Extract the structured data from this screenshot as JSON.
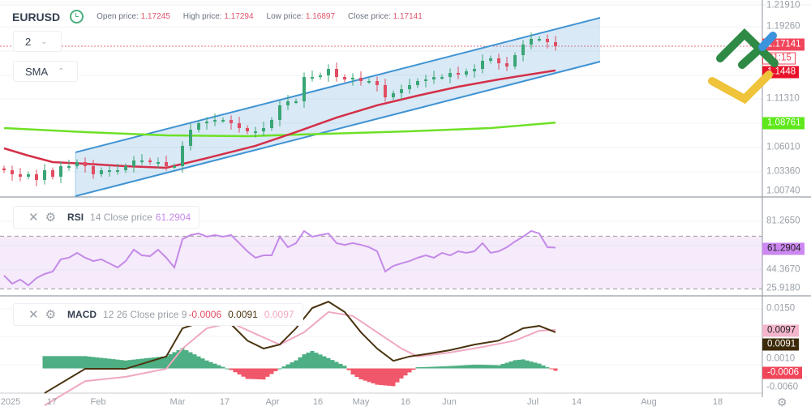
{
  "header": {
    "symbol": "EURUSD",
    "open_label": "Open price:",
    "open": "1.17245",
    "high_label": "High price:",
    "high": "1.17294",
    "low_label": "Low price:",
    "low": "1.16897",
    "close_label": "Close price:",
    "close": "1.17141"
  },
  "controls": {
    "timeframe": "2",
    "indicator_menu": "SMA"
  },
  "rsi_legend": {
    "name": "RSI",
    "params": "14 Close price",
    "value": "61.2904"
  },
  "macd_legend": {
    "name": "MACD",
    "params": "12 26 Close price 9",
    "hist": "-0.0006",
    "macd": "0.0091",
    "signal": "0.0097"
  },
  "price_axis": [
    "1.21910",
    "1.19260",
    "1.11310",
    "1.06010",
    "1.03360",
    "1.00740"
  ],
  "price_badges": {
    "last": "1.17141",
    "countdown": "31:15",
    "sma_red": "1.1448",
    "sma_green": "1.08761"
  },
  "rsi_axis": [
    "81.2650",
    "44.3670",
    "25.9180"
  ],
  "rsi_badge": "61.2904",
  "macd_axis": [
    "0.0150",
    "0.0010",
    "-0.0060"
  ],
  "macd_badges": {
    "signal": "0.0097",
    "macd": "0.0091",
    "hist": "-0.0006"
  },
  "x_ticks": [
    "2025",
    "17",
    "Feb",
    "Mar",
    "17",
    "Apr",
    "16",
    "May",
    "16",
    "Jun",
    "Jul",
    "14",
    "Aug",
    "18"
  ],
  "colors": {
    "up": "#3aa676",
    "down": "#e04c62",
    "sma_fast": "#d43049",
    "sma_slow": "#6ee026",
    "channel": "#3f93d3",
    "rsi": "#c48ae8",
    "macd": "#4a3410",
    "signal": "#f0a8c0"
  },
  "chart_data": [
    {
      "type": "candlestick",
      "title": "EURUSD",
      "ylim": [
        1.0074,
        1.2191
      ],
      "close": [
        1.0354,
        1.031,
        1.0283,
        1.031,
        1.0248,
        1.0354,
        1.0283,
        1.0399,
        1.0399,
        1.0443,
        1.0399,
        1.031,
        1.0354,
        1.0354,
        1.0354,
        1.0399,
        1.0461,
        1.0461,
        1.0443,
        1.0443,
        1.0399,
        1.0399,
        1.0621,
        1.0798,
        1.0869,
        1.0887,
        1.0905,
        1.0905,
        1.0869,
        1.0816,
        1.078,
        1.078,
        1.0816,
        1.0905,
        1.1065,
        1.1109,
        1.1109,
        1.1375,
        1.1375,
        1.1393,
        1.1464,
        1.1375,
        1.1349,
        1.1367,
        1.1331,
        1.1331,
        1.1287,
        1.1153,
        1.1198,
        1.1242,
        1.1287,
        1.1331,
        1.1349,
        1.1375,
        1.1375,
        1.142,
        1.1402,
        1.1438,
        1.1464,
        1.1553,
        1.158,
        1.1526,
        1.1491,
        1.1615,
        1.1731,
        1.1793,
        1.1793,
        1.1757,
        1.1714
      ],
      "sma_fast": [
        [
          0,
          1.0594
        ],
        [
          3,
          1.0514
        ],
        [
          6,
          1.0443
        ],
        [
          10,
          1.0425
        ],
        [
          15,
          1.0399
        ],
        [
          20,
          1.0381
        ],
        [
          25,
          1.0487
        ],
        [
          31,
          1.0621
        ],
        [
          36,
          1.0772
        ],
        [
          41,
          1.0931
        ],
        [
          46,
          1.1065
        ],
        [
          51,
          1.1171
        ],
        [
          56,
          1.1269
        ],
        [
          61,
          1.1349
        ],
        [
          68,
          1.1448
        ]
      ],
      "sma_slow": [
        [
          0,
          1.0816
        ],
        [
          10,
          1.0772
        ],
        [
          20,
          1.0736
        ],
        [
          30,
          1.0727
        ],
        [
          40,
          1.0754
        ],
        [
          50,
          1.078
        ],
        [
          60,
          1.0816
        ],
        [
          68,
          1.0876
        ]
      ],
      "channel": {
        "upper": [
          1.055,
          1.2024
        ],
        "lower": [
          1.007,
          1.1544
        ]
      }
    },
    {
      "type": "line",
      "title": "RSI",
      "ylim": [
        25.918,
        81.265
      ],
      "levels": [
        70,
        30
      ],
      "values": [
        40.1,
        33.9,
        37.0,
        32.7,
        38.2,
        41.3,
        43.1,
        52.4,
        53.6,
        57.3,
        53.6,
        51.1,
        52.4,
        49.3,
        46.2,
        51.1,
        59.7,
        55.4,
        54.8,
        59.7,
        53.6,
        46.2,
        67.7,
        70.8,
        72.0,
        69.6,
        70.8,
        69.6,
        70.8,
        64.7,
        58.5,
        53.6,
        55.4,
        55.4,
        69.6,
        61.6,
        64.7,
        73.9,
        69.6,
        70.8,
        72.0,
        64.7,
        63.4,
        64.7,
        63.4,
        61.6,
        58.5,
        43.1,
        47.4,
        49.3,
        51.1,
        53.6,
        55.4,
        53.6,
        57.3,
        55.4,
        58.5,
        57.3,
        58.5,
        64.7,
        57.3,
        58.5,
        61.6,
        65.9,
        69.6,
        73.9,
        72.0,
        61.6,
        61.3
      ]
    },
    {
      "type": "line+bar",
      "title": "MACD",
      "ylim": [
        -0.006,
        0.015
      ],
      "macd": [
        [
          5,
          -0.0062
        ],
        [
          10,
          -0.0001
        ],
        [
          15,
          -0.0001
        ],
        [
          20,
          0.003
        ],
        [
          22,
          0.0101
        ],
        [
          25,
          0.0121
        ],
        [
          28,
          0.0111
        ],
        [
          30,
          0.007
        ],
        [
          32,
          0.005
        ],
        [
          34,
          0.006
        ],
        [
          36,
          0.0101
        ],
        [
          38,
          0.0152
        ],
        [
          40,
          0.0168
        ],
        [
          42,
          0.0142
        ],
        [
          44,
          0.0091
        ],
        [
          46,
          0.005
        ],
        [
          48,
          0.0019
        ],
        [
          50,
          0.003
        ],
        [
          52,
          0.0036
        ],
        [
          55,
          0.0046
        ],
        [
          58,
          0.006
        ],
        [
          61,
          0.007
        ],
        [
          64,
          0.0101
        ],
        [
          66,
          0.0107
        ],
        [
          68,
          0.0091
        ]
      ],
      "signal": [
        [
          5,
          -0.0093
        ],
        [
          10,
          -0.0032
        ],
        [
          15,
          -0.0021
        ],
        [
          20,
          -0.0001
        ],
        [
          22,
          0.005
        ],
        [
          25,
          0.0101
        ],
        [
          28,
          0.0115
        ],
        [
          31,
          0.0087
        ],
        [
          34,
          0.006
        ],
        [
          37,
          0.0091
        ],
        [
          40,
          0.0142
        ],
        [
          43,
          0.0132
        ],
        [
          46,
          0.0091
        ],
        [
          49,
          0.005
        ],
        [
          51,
          0.003
        ],
        [
          55,
          0.004
        ],
        [
          59,
          0.0054
        ],
        [
          63,
          0.007
        ],
        [
          66,
          0.0095
        ],
        [
          68,
          0.0097
        ]
      ]
    }
  ]
}
